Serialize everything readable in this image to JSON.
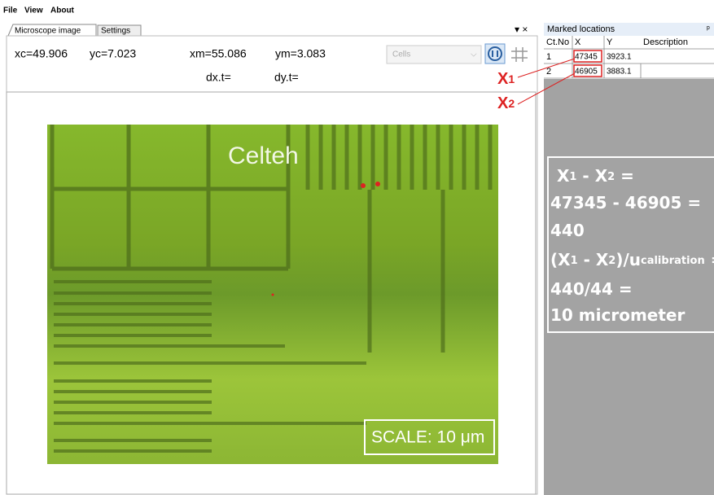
{
  "menu": [
    "File",
    "View",
    "About"
  ],
  "tabs": [
    "Microscope image",
    "Settings"
  ],
  "readout": {
    "xc": "xc=49.906",
    "yc": "yc=7.023",
    "xm": "xm=55.086",
    "ym": "ym=3.083",
    "dx": "dx.t=",
    "dy": "dy.t="
  },
  "dropdown": "Cells",
  "image": {
    "label": "Celteh",
    "scale": "SCALE: 10 μm"
  },
  "marked_locations": {
    "title": "Marked locations",
    "columns": [
      "Ct.No",
      "X",
      "Y",
      "Description"
    ],
    "rows": [
      [
        "1",
        "47345",
        "3923.1"
      ],
      [
        "2",
        "46905",
        "3883.1"
      ]
    ]
  },
  "annotations": [
    [
      {
        "text": "X"
      },
      {
        "text": "1",
        "sub": true
      }
    ],
    [
      {
        "text": "X"
      },
      {
        "text": "2",
        "sub": true
      }
    ]
  ],
  "calculation": [
    [
      {
        "text": "X"
      },
      {
        "text": "1",
        "sub": true
      },
      {
        "text": " - X"
      },
      {
        "text": "2",
        "sub": true
      },
      {
        "text": " ="
      }
    ],
    [
      {
        "text": "47345 - 46905 ="
      }
    ],
    [
      {
        "text": "440"
      }
    ],
    [
      {
        "text": "(X"
      },
      {
        "text": "1",
        "sub": true
      },
      {
        "text": " - X"
      },
      {
        "text": "2",
        "sub": true
      },
      {
        "text": ")/u"
      },
      {
        "text": "calibration",
        "sub": true
      },
      {
        "text": " ="
      }
    ],
    [
      {
        "text": "440/44 ="
      }
    ],
    [
      {
        "text": "10 micrometer"
      }
    ]
  ]
}
